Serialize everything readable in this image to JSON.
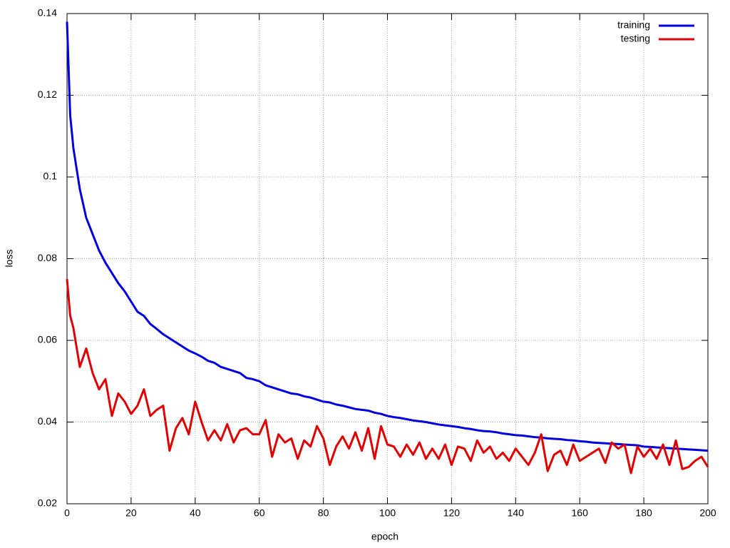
{
  "chart_data": {
    "type": "line",
    "xlabel": "epoch",
    "ylabel": "loss",
    "xlim": [
      0,
      200
    ],
    "ylim": [
      0.02,
      0.14
    ],
    "xticks": [
      0,
      20,
      40,
      60,
      80,
      100,
      120,
      140,
      160,
      180,
      200
    ],
    "yticks": [
      0.02,
      0.04,
      0.06,
      0.08,
      0.1,
      0.12,
      0.14
    ],
    "grid": true,
    "legend": "top-right",
    "x": [
      0,
      1,
      2,
      4,
      6,
      8,
      10,
      12,
      14,
      16,
      18,
      20,
      22,
      24,
      26,
      28,
      30,
      32,
      34,
      36,
      38,
      40,
      42,
      44,
      46,
      48,
      50,
      52,
      54,
      56,
      58,
      60,
      62,
      64,
      66,
      68,
      70,
      72,
      74,
      76,
      78,
      80,
      82,
      84,
      86,
      88,
      90,
      92,
      94,
      96,
      98,
      100,
      102,
      104,
      106,
      108,
      110,
      112,
      114,
      116,
      118,
      120,
      122,
      124,
      126,
      128,
      130,
      132,
      134,
      136,
      138,
      140,
      142,
      144,
      146,
      148,
      150,
      152,
      154,
      156,
      158,
      160,
      162,
      164,
      166,
      168,
      170,
      172,
      174,
      176,
      178,
      180,
      182,
      184,
      186,
      188,
      190,
      192,
      194,
      196,
      198,
      200
    ],
    "series": [
      {
        "name": "training",
        "color": "#0000e0",
        "values": [
          0.138,
          0.115,
          0.107,
          0.097,
          0.09,
          0.086,
          0.082,
          0.079,
          0.0765,
          0.074,
          0.072,
          0.0695,
          0.067,
          0.066,
          0.064,
          0.0628,
          0.0615,
          0.0605,
          0.0595,
          0.0585,
          0.0575,
          0.0568,
          0.056,
          0.055,
          0.0545,
          0.0535,
          0.053,
          0.0525,
          0.052,
          0.0508,
          0.0505,
          0.05,
          0.049,
          0.0485,
          0.048,
          0.0475,
          0.047,
          0.0468,
          0.0463,
          0.046,
          0.0455,
          0.045,
          0.0448,
          0.0443,
          0.044,
          0.0436,
          0.0432,
          0.043,
          0.0428,
          0.0423,
          0.042,
          0.0415,
          0.0412,
          0.041,
          0.0407,
          0.0404,
          0.0402,
          0.04,
          0.0397,
          0.0394,
          0.0392,
          0.039,
          0.0388,
          0.0385,
          0.0383,
          0.038,
          0.0378,
          0.0377,
          0.0375,
          0.0372,
          0.037,
          0.0368,
          0.0367,
          0.0365,
          0.0363,
          0.0362,
          0.036,
          0.0359,
          0.0358,
          0.0356,
          0.0355,
          0.0353,
          0.0352,
          0.035,
          0.0349,
          0.0348,
          0.0347,
          0.0346,
          0.0345,
          0.0344,
          0.0343,
          0.034,
          0.0339,
          0.0338,
          0.0337,
          0.0336,
          0.0335,
          0.0334,
          0.0333,
          0.0332,
          0.0331,
          0.033
        ]
      },
      {
        "name": "testing",
        "color": "#e00000",
        "values": [
          0.075,
          0.066,
          0.063,
          0.0535,
          0.058,
          0.052,
          0.048,
          0.0505,
          0.0415,
          0.047,
          0.045,
          0.042,
          0.044,
          0.048,
          0.0415,
          0.043,
          0.044,
          0.033,
          0.0385,
          0.041,
          0.037,
          0.045,
          0.04,
          0.0355,
          0.038,
          0.0355,
          0.0395,
          0.035,
          0.038,
          0.0385,
          0.037,
          0.037,
          0.0405,
          0.0315,
          0.037,
          0.035,
          0.036,
          0.031,
          0.0355,
          0.034,
          0.039,
          0.036,
          0.0295,
          0.034,
          0.0365,
          0.0335,
          0.0375,
          0.033,
          0.0385,
          0.031,
          0.039,
          0.0345,
          0.034,
          0.0315,
          0.0345,
          0.032,
          0.035,
          0.031,
          0.0335,
          0.031,
          0.0345,
          0.0295,
          0.034,
          0.0335,
          0.0305,
          0.0355,
          0.0325,
          0.034,
          0.031,
          0.0325,
          0.0305,
          0.0335,
          0.0315,
          0.0295,
          0.0325,
          0.037,
          0.028,
          0.032,
          0.033,
          0.0295,
          0.0345,
          0.0305,
          0.0315,
          0.0325,
          0.0335,
          0.03,
          0.035,
          0.0335,
          0.0345,
          0.0275,
          0.034,
          0.0315,
          0.0335,
          0.031,
          0.0345,
          0.0295,
          0.0355,
          0.0285,
          0.029,
          0.0305,
          0.0315,
          0.029
        ]
      }
    ]
  }
}
